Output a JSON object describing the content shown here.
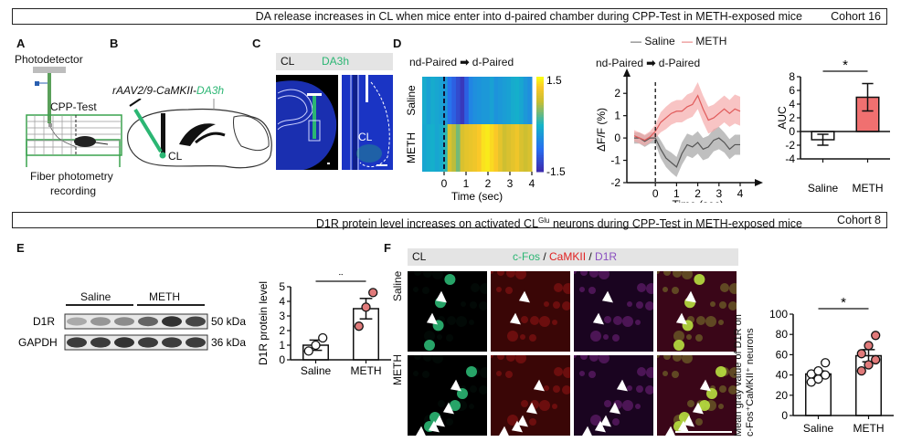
{
  "banners": [
    {
      "text": "DA release increases in CL when mice enter into d-paired chamber during CPP-Test in METH-exposed mice",
      "cohort": "Cohort 16"
    },
    {
      "text_pre": "D1R protein level increases on activated CL",
      "text_sup": "Glu",
      "text_post": " neurons during CPP-Test in METH-exposed mice",
      "cohort": "Cohort 8"
    }
  ],
  "panel_labels": {
    "a": "A",
    "b": "B",
    "c": "C",
    "d": "D",
    "e": "E",
    "f": "F"
  },
  "panel_a": {
    "photodetector": "Photodetector",
    "cpp_test": "CPP-Test",
    "caption_line1": "Fiber photometry",
    "caption_line2": "recording",
    "colors": {
      "chamber": "#3aa34e",
      "fiber": "#5a9a5a"
    }
  },
  "panel_b": {
    "virus_pre": "rAAV2/9-CaMKII-",
    "virus_post": "DA3h",
    "target": "CL",
    "colors": {
      "virus": "#2bb673"
    }
  },
  "panel_c": {
    "header_left": "CL",
    "header_right": "DA3h",
    "inset_label": "CL",
    "colors": {
      "tissue": "#1a2fb0",
      "signal": "#2bb673"
    }
  },
  "panel_d_heatmap": {
    "header_from": "nd-Paired",
    "header_to": "d-Paired",
    "rows": [
      "Saline",
      "METH"
    ],
    "xlabel": "Time (sec)",
    "xticks": [
      "0",
      "1",
      "2",
      "3",
      "4"
    ],
    "colorbar_max": "1.5",
    "colorbar_min": "-1.5"
  },
  "chart_data": [
    {
      "type": "heatmap",
      "title": "nd-Paired → d-Paired",
      "xlabel": "Time (sec)",
      "ylabel": "",
      "x_range": [
        -1,
        4
      ],
      "rows": [
        "Saline",
        "METH"
      ],
      "color_range": [
        -1.5,
        1.5
      ],
      "values": [
        [
          -0.1,
          -0.2,
          -0.1,
          -0.15,
          -0.2,
          -0.3,
          -0.7,
          -0.9,
          -1.1,
          -1.3,
          -0.9,
          -0.5,
          -0.4,
          -0.35,
          -0.3,
          -0.3,
          -0.2,
          -0.35,
          -0.3,
          -0.25,
          -0.2,
          -0.1,
          -0.05,
          -0.15,
          -0.3,
          -0.4
        ],
        [
          -0.15,
          -0.1,
          -0.05,
          -0.15,
          -0.1,
          0.1,
          0.9,
          0.7,
          0.4,
          0.9,
          1.0,
          1.05,
          1.1,
          1.2,
          1.35,
          1.4,
          1.3,
          1.2,
          1.0,
          0.8,
          0.9,
          1.0,
          1.1,
          0.9,
          0.8,
          0.9
        ]
      ]
    },
    {
      "type": "line",
      "title": "nd-Paired → d-Paired",
      "xlabel": "Time (sec)",
      "ylabel": "ΔF/F (%)",
      "xlim": [
        -1,
        4
      ],
      "ylim": [
        -2,
        2.5
      ],
      "xticks": [
        0,
        1,
        2,
        3,
        4
      ],
      "yticks": [
        -2,
        -1,
        0,
        1,
        2
      ],
      "legend": "top",
      "series": [
        {
          "name": "Saline",
          "color": "#555555",
          "band_color": "#9c9c9c",
          "x": [
            -1,
            -0.75,
            -0.5,
            -0.25,
            0,
            0.25,
            0.5,
            0.75,
            1,
            1.25,
            1.5,
            1.75,
            2,
            2.25,
            2.5,
            2.75,
            3,
            3.25,
            3.5,
            3.75,
            4
          ],
          "y": [
            0.0,
            0.0,
            -0.15,
            0.0,
            0.0,
            -0.5,
            -0.9,
            -1.1,
            -1.3,
            -0.7,
            -0.3,
            -0.4,
            -0.2,
            -0.5,
            -0.4,
            -0.1,
            0.0,
            -0.2,
            -0.5,
            -0.3,
            -0.3
          ],
          "sem": [
            0.25,
            0.25,
            0.25,
            0.25,
            0.25,
            0.4,
            0.4,
            0.45,
            0.45,
            0.5,
            0.5,
            0.5,
            0.5,
            0.5,
            0.5,
            0.5,
            0.5,
            0.45,
            0.45,
            0.45,
            0.45
          ]
        },
        {
          "name": "METH",
          "color": "#e05a5a",
          "band_color": "#f4a5a5",
          "x": [
            -1,
            -0.75,
            -0.5,
            -0.25,
            0,
            0.25,
            0.5,
            0.75,
            1,
            1.25,
            1.5,
            1.75,
            2,
            2.25,
            2.5,
            2.75,
            3,
            3.25,
            3.5,
            3.75,
            4
          ],
          "y": [
            0.1,
            0.0,
            -0.1,
            0.05,
            0.3,
            0.7,
            0.9,
            1.1,
            1.2,
            1.2,
            1.4,
            1.5,
            1.9,
            1.3,
            0.8,
            0.9,
            1.1,
            1.3,
            1.1,
            1.3,
            1.2
          ],
          "sem": [
            0.25,
            0.25,
            0.25,
            0.25,
            0.3,
            0.45,
            0.5,
            0.5,
            0.5,
            0.5,
            0.55,
            0.55,
            0.6,
            0.6,
            0.6,
            0.6,
            0.6,
            0.6,
            0.6,
            0.65,
            0.65
          ]
        }
      ]
    },
    {
      "type": "bar",
      "title": "",
      "xlabel": "",
      "ylabel": "AUC",
      "ylim": [
        -4,
        8
      ],
      "yticks": [
        -4,
        -2,
        0,
        2,
        4,
        6,
        8
      ],
      "categories": [
        "Saline",
        "METH"
      ],
      "values": [
        -1.2,
        5.0
      ],
      "errors": [
        0.8,
        2.0
      ],
      "colors": [
        "#ffffff",
        "#f07070"
      ],
      "significance": "*"
    },
    {
      "type": "bar",
      "title": "",
      "xlabel": "",
      "ylabel": "D1R protein level",
      "ylim": [
        0,
        5
      ],
      "yticks": [
        0,
        1,
        2,
        3,
        4,
        5
      ],
      "categories": [
        "Saline",
        "METH"
      ],
      "values": [
        1.0,
        3.5
      ],
      "errors": [
        0.35,
        0.7
      ],
      "points": [
        [
          0.6,
          1.0,
          1.5
        ],
        [
          2.3,
          3.6,
          4.6
        ]
      ],
      "point_colors": [
        "#ffffff",
        "#e07a7a"
      ],
      "significance": "*"
    },
    {
      "type": "bar",
      "title": "",
      "xlabel": "",
      "ylabel": "Mean gray value of D1R on c-Fos⁺CaMKII⁺ neurons",
      "ylim": [
        0,
        100
      ],
      "yticks": [
        0,
        20,
        40,
        60,
        80,
        100
      ],
      "categories": [
        "Saline",
        "METH"
      ],
      "values": [
        41,
        59
      ],
      "errors": [
        3,
        6
      ],
      "points": [
        [
          33,
          36,
          40,
          41,
          44,
          52
        ],
        [
          44,
          50,
          55,
          61,
          69,
          79
        ]
      ],
      "point_colors": [
        "#ffffff",
        "#e07a7a"
      ],
      "significance": "*"
    }
  ],
  "panel_d_line": {
    "legend_saline": "Saline",
    "legend_meth": "METH",
    "header_from": "nd-Paired",
    "header_to": "d-Paired",
    "ylabel": "ΔF/F (%)",
    "xlabel": "Time (sec)"
  },
  "panel_d_bar": {
    "ylabel": "AUC",
    "sig": "*"
  },
  "panel_e": {
    "group1": "Saline",
    "group2": "METH",
    "rows": [
      {
        "label": "D1R",
        "size": "50 kDa",
        "intensity": [
          0.25,
          0.35,
          0.4,
          0.6,
          0.85,
          0.75
        ]
      },
      {
        "label": "GAPDH",
        "size": "36 kDa",
        "intensity": [
          0.8,
          0.8,
          0.85,
          0.8,
          0.8,
          0.8
        ]
      }
    ],
    "ylabel": "D1R protein level",
    "sig": "*"
  },
  "panel_f": {
    "header_left": "CL",
    "stain1": "c-Fos",
    "sep": " / ",
    "stain2": "CaMKII",
    "stain3": "D1R",
    "rows": [
      "Saline",
      "METH"
    ],
    "colors": {
      "cfos": "#2bb673",
      "camkii": "#e02020",
      "d1r": "#8a4fc0"
    },
    "ylabel_line1": "Mean gray value of D1R on",
    "ylabel_line2": "c-Fos⁺CaMKII⁺ neurons",
    "sig": "*"
  },
  "axis_labels": {
    "saline": "Saline",
    "meth": "METH"
  }
}
